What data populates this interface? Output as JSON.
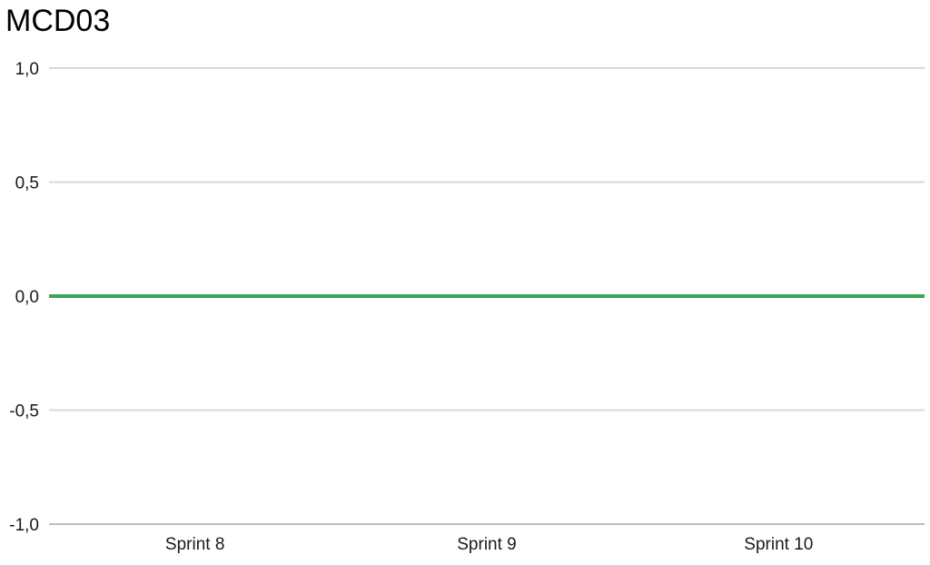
{
  "chart_data": {
    "type": "line",
    "title": "MCD03",
    "xlabel": "",
    "ylabel": "",
    "categories": [
      "Sprint 8",
      "Sprint 9",
      "Sprint 10"
    ],
    "series": [
      {
        "values": [
          0,
          0,
          0
        ],
        "color": "#34a853"
      }
    ],
    "ylim": [
      -1.0,
      1.0
    ],
    "yticks": [
      1.0,
      0.5,
      0.0,
      -0.5,
      -1.0
    ],
    "ytick_labels": [
      "1,0",
      "0,5",
      "0,0",
      "-0,5",
      "-1,0"
    ],
    "grid": true,
    "legend": "none",
    "gridline_color": "#d9d9d9",
    "baseline_color": "#bdbdbd"
  }
}
